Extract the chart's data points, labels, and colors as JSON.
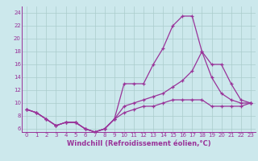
{
  "xlabel": "Windchill (Refroidissement éolien,°C)",
  "line1_x": [
    0,
    1,
    2,
    3,
    4,
    5,
    6,
    7,
    8,
    9,
    10,
    11,
    12,
    13,
    14,
    15,
    16,
    17,
    18,
    19,
    20,
    21,
    22,
    23
  ],
  "line1_y": [
    9.0,
    8.5,
    7.5,
    6.5,
    7.0,
    7.0,
    6.0,
    5.5,
    6.0,
    7.5,
    13.0,
    13.0,
    13.0,
    16.0,
    18.5,
    22.0,
    23.5,
    23.5,
    18.0,
    14.0,
    11.5,
    10.5,
    10.0,
    10.0
  ],
  "line2_x": [
    0,
    1,
    2,
    3,
    4,
    5,
    6,
    7,
    8,
    9,
    10,
    11,
    12,
    13,
    14,
    15,
    16,
    17,
    18,
    19,
    20,
    21,
    22,
    23
  ],
  "line2_y": [
    9.0,
    8.5,
    7.5,
    6.5,
    7.0,
    7.0,
    6.0,
    5.5,
    6.0,
    7.5,
    9.5,
    10.0,
    10.5,
    11.0,
    11.5,
    12.5,
    13.5,
    15.0,
    18.0,
    16.0,
    16.0,
    13.0,
    10.5,
    10.0
  ],
  "line3_x": [
    0,
    1,
    2,
    3,
    4,
    5,
    6,
    7,
    8,
    9,
    10,
    11,
    12,
    13,
    14,
    15,
    16,
    17,
    18,
    19,
    20,
    21,
    22,
    23
  ],
  "line3_y": [
    9.0,
    8.5,
    7.5,
    6.5,
    7.0,
    7.0,
    6.0,
    5.5,
    6.0,
    7.5,
    8.5,
    9.0,
    9.5,
    9.5,
    10.0,
    10.5,
    10.5,
    10.5,
    10.5,
    9.5,
    9.5,
    9.5,
    9.5,
    10.0
  ],
  "line_color": "#993399",
  "bg_color": "#cce8ec",
  "grid_color": "#aacccc",
  "ylim": [
    5.5,
    25.0
  ],
  "xlim": [
    -0.5,
    23.5
  ],
  "yticks": [
    6,
    8,
    10,
    12,
    14,
    16,
    18,
    20,
    22,
    24
  ],
  "xticks": [
    0,
    1,
    2,
    3,
    4,
    5,
    6,
    7,
    8,
    9,
    10,
    11,
    12,
    13,
    14,
    15,
    16,
    17,
    18,
    19,
    20,
    21,
    22,
    23
  ],
  "tick_fontsize": 5.0,
  "xlabel_fontsize": 6.0,
  "marker": "+",
  "markersize": 3.5,
  "linewidth": 0.9
}
